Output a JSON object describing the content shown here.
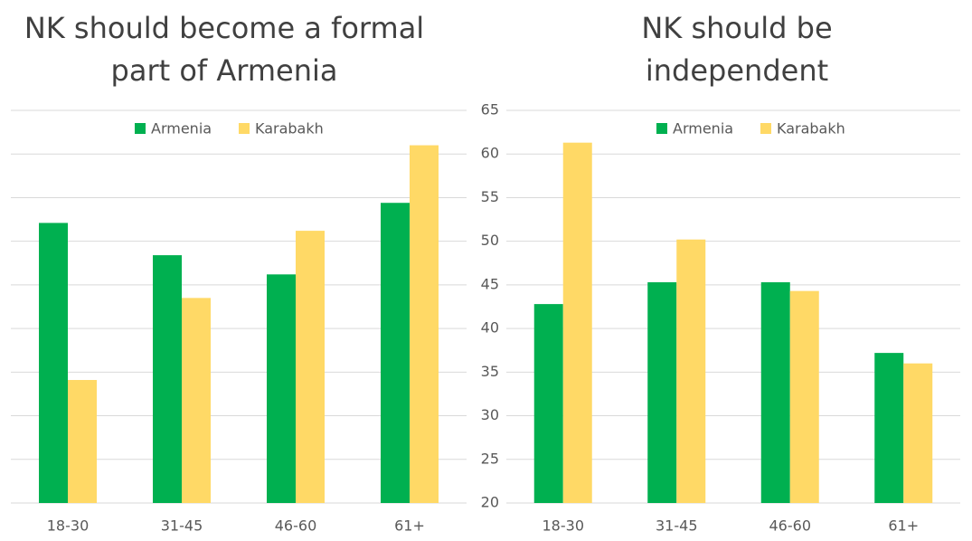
{
  "chart_data": [
    {
      "type": "bar",
      "title": [
        "NK should become a formal",
        "part of Armenia"
      ],
      "categories": [
        "18-30",
        "31-45",
        "46-60",
        "61+"
      ],
      "series": [
        {
          "name": "Armenia",
          "color": "#00b050",
          "values": [
            52.1,
            48.4,
            46.2,
            54.4
          ]
        },
        {
          "name": "Karabakh",
          "color": "#ffd966",
          "values": [
            34.1,
            43.5,
            51.2,
            61.0
          ]
        }
      ],
      "ylim": [
        20,
        65
      ],
      "yticks": [
        20,
        25,
        30,
        35,
        40,
        45,
        50,
        55,
        60,
        65
      ],
      "tick_labels": false,
      "grid": true,
      "legend": "top"
    },
    {
      "type": "bar",
      "title": [
        "NK should be",
        "independent"
      ],
      "categories": [
        "18-30",
        "31-45",
        "46-60",
        "61+"
      ],
      "series": [
        {
          "name": "Armenia",
          "color": "#00b050",
          "values": [
            42.8,
            45.3,
            45.3,
            37.2
          ]
        },
        {
          "name": "Karabakh",
          "color": "#ffd966",
          "values": [
            61.3,
            50.2,
            44.3,
            36.0
          ]
        }
      ],
      "ylim": [
        20,
        65
      ],
      "yticks": [
        20,
        25,
        30,
        35,
        40,
        45,
        50,
        55,
        60,
        65
      ],
      "tick_labels": true,
      "grid": true,
      "legend": "top"
    }
  ]
}
